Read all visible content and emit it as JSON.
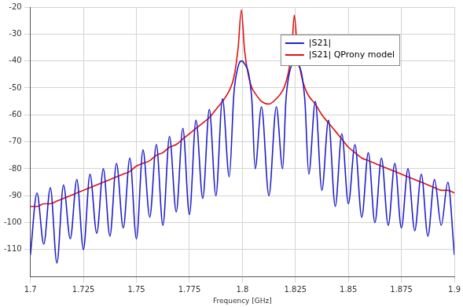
{
  "chart_data": {
    "type": "line",
    "x_label": "Frequency [GHz]",
    "x": [
      1.7,
      1.7031,
      1.7063,
      1.7094,
      1.7125,
      1.7156,
      1.7188,
      1.7219,
      1.725,
      1.7281,
      1.7313,
      1.7344,
      1.7375,
      1.7406,
      1.7438,
      1.7469,
      1.75,
      1.7531,
      1.7563,
      1.7594,
      1.7625,
      1.7656,
      1.7688,
      1.7719,
      1.775,
      1.7781,
      1.7813,
      1.7844,
      1.7875,
      1.7906,
      1.7938,
      1.796,
      1.798,
      1.7995,
      1.801,
      1.803,
      1.8045,
      1.806,
      1.809,
      1.8125,
      1.816,
      1.819,
      1.8205,
      1.822,
      1.8235,
      1.8245,
      1.826,
      1.828,
      1.8295,
      1.8313,
      1.8344,
      1.8375,
      1.8406,
      1.8438,
      1.8469,
      1.85,
      1.8531,
      1.8563,
      1.8594,
      1.8625,
      1.8656,
      1.8688,
      1.8719,
      1.875,
      1.8781,
      1.8813,
      1.8844,
      1.8875,
      1.8906,
      1.8938,
      1.8969,
      1.9
    ],
    "series": [
      {
        "name": "|S21|",
        "color": "#2020c8",
        "values": [
          -112,
          -89,
          -108,
          -87,
          -115,
          -86,
          -106,
          -84,
          -110,
          -82,
          -104,
          -80,
          -105,
          -78,
          -102,
          -76,
          -106,
          -73,
          -98,
          -71,
          -101,
          -68,
          -96,
          -65,
          -97,
          -62,
          -91,
          -58,
          -90,
          -54,
          -83,
          -52,
          -42,
          -40,
          -41,
          -45,
          -55,
          -80,
          -57,
          -90,
          -57,
          -80,
          -55,
          -45,
          -41,
          -40,
          -41,
          -45,
          -55,
          -82,
          -55,
          -88,
          -62,
          -94,
          -67,
          -93,
          -71,
          -98,
          -74,
          -100,
          -76,
          -101,
          -78,
          -102,
          -80,
          -103,
          -82,
          -105,
          -84,
          -101,
          -85,
          -112
        ]
      },
      {
        "name": "|S21| QProny model",
        "color": "#e01010",
        "values": [
          -94,
          -94,
          -93,
          -93,
          -92,
          -91,
          -90,
          -89,
          -88,
          -87,
          -86,
          -85,
          -84,
          -83,
          -82,
          -81,
          -79,
          -78,
          -77,
          -75,
          -74,
          -72,
          -71,
          -69,
          -67,
          -65,
          -63,
          -61,
          -58,
          -55,
          -51,
          -46,
          -35,
          -21,
          -36,
          -46,
          -50,
          -52,
          -55,
          -56,
          -54,
          -51,
          -48,
          -43,
          -33,
          -23,
          -37,
          -46,
          -50,
          -53,
          -56,
          -60,
          -63,
          -66,
          -69,
          -72,
          -74,
          -76,
          -77,
          -78,
          -79,
          -80,
          -81,
          -82,
          -83,
          -84,
          -85,
          -86,
          -87,
          -88,
          -88,
          -89
        ]
      }
    ],
    "xlim": [
      1.7,
      1.9
    ],
    "xticks": [
      1.7,
      1.725,
      1.75,
      1.775,
      1.8,
      1.825,
      1.85,
      1.875,
      1.9
    ],
    "ylim": [
      -120,
      -20
    ],
    "yticks": [
      -110,
      -100,
      -90,
      -80,
      -70,
      -60,
      -50,
      -40,
      -30,
      -20
    ],
    "grid": true,
    "legend": "upper right"
  }
}
